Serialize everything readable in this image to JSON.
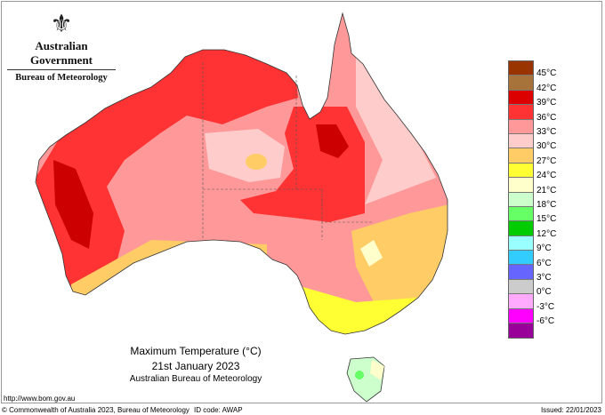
{
  "logo": {
    "crest_icon": "coat-of-arms-icon",
    "government": "Australian Government",
    "bureau": "Bureau of Meteorology"
  },
  "map": {
    "region": "Australia",
    "variable": "Maximum Temperature",
    "colors": {
      "base": "#ff9999",
      "hot": "#ff3333",
      "very_hot": "#cc0000",
      "warm": "#ffcccc",
      "mild": "#ffcc66",
      "cool": "#ffff33",
      "cooler": "#ffffcc",
      "cold": "#ccffcc",
      "colder": "#66ff66"
    }
  },
  "legend": {
    "bins": [
      "#993300",
      "#a8733a",
      "#dd0000",
      "#ff3333",
      "#ff9999",
      "#ffcccc",
      "#ffcc66",
      "#ffff33",
      "#ffffcc",
      "#ccffcc",
      "#66ff66",
      "#00cc00",
      "#99ffff",
      "#33ccff",
      "#6666ff",
      "#cccccc",
      "#ffaaff",
      "#ff00ff",
      "#990099"
    ],
    "labels": [
      "45°C",
      "42°C",
      "39°C",
      "36°C",
      "33°C",
      "30°C",
      "27°C",
      "24°C",
      "21°C",
      "18°C",
      "15°C",
      "12°C",
      "9°C",
      "6°C",
      "3°C",
      "0°C",
      "-3°C",
      "-6°C"
    ]
  },
  "title": {
    "line1": "Maximum Temperature (°C)",
    "line2": "21st January 2023",
    "line3": "Australian Bureau of Meteorology"
  },
  "footer": {
    "url": "http://www.bom.gov.au",
    "copyright": "© Commonwealth of Australia 2023, Bureau of Meteorology",
    "id_code": "ID code: AWAP",
    "issued": "Issued: 22/01/2023"
  }
}
